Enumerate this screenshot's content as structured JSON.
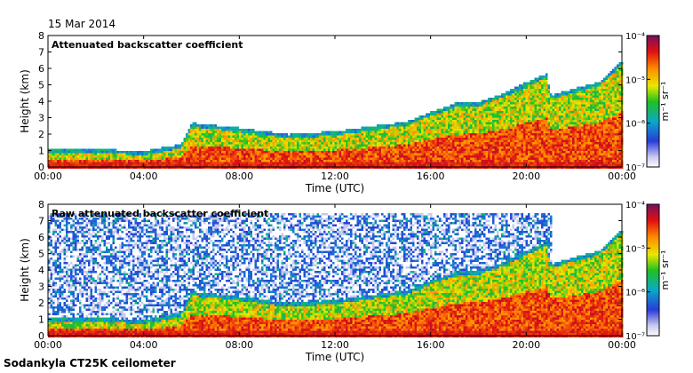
{
  "date": "15 Mar 2014",
  "instrument": "Sodankyla CT25K ceilometer",
  "chart_data": [
    {
      "type": "heatmap",
      "title": "Attenuated backscatter coefficient",
      "xlabel": "Time (UTC)",
      "ylabel": "Height (km)",
      "xticks": [
        "00:00",
        "04:00",
        "08:00",
        "12:00",
        "16:00",
        "20:00",
        "00:00"
      ],
      "xlim_hours": [
        0,
        24
      ],
      "ylim": [
        0,
        8
      ],
      "yticks": [
        0,
        1,
        2,
        3,
        4,
        5,
        6,
        7,
        8
      ],
      "colorbar": {
        "label": "m⁻¹ sr⁻¹",
        "ticks": [
          "10⁻⁷",
          "10⁻⁶",
          "10⁻⁵",
          "10⁻⁴"
        ],
        "range_exp": [
          -7,
          -4
        ]
      },
      "boundary_layer_top_km": [
        [
          0,
          0.9
        ],
        [
          2,
          0.9
        ],
        [
          4,
          0.8
        ],
        [
          5.5,
          1.2
        ],
        [
          6,
          2.5
        ],
        [
          8,
          2.2
        ],
        [
          10,
          1.8
        ],
        [
          12,
          2.0
        ],
        [
          14,
          2.4
        ],
        [
          15,
          2.6
        ],
        [
          16,
          3.2
        ],
        [
          17,
          3.7
        ],
        [
          18,
          3.8
        ],
        [
          19,
          4.3
        ],
        [
          20,
          5.0
        ],
        [
          20.8,
          5.5
        ],
        [
          21,
          4.2
        ],
        [
          23,
          5.0
        ],
        [
          24,
          6.3
        ]
      ]
    },
    {
      "type": "heatmap",
      "title": "Raw attenuated backscatter coefficient",
      "xlabel": "Time (UTC)",
      "ylabel": "Height (km)",
      "xticks": [
        "00:00",
        "04:00",
        "08:00",
        "12:00",
        "16:00",
        "20:00",
        "00:00"
      ],
      "xlim_hours": [
        0,
        24
      ],
      "ylim": [
        0,
        8
      ],
      "yticks": [
        0,
        1,
        2,
        3,
        4,
        5,
        6,
        7,
        8
      ],
      "colorbar": {
        "label": "m⁻¹ sr⁻¹",
        "ticks": [
          "10⁻⁷",
          "10⁻⁶",
          "10⁻⁵",
          "10⁻⁴"
        ],
        "range_exp": [
          -7,
          -4
        ]
      },
      "noise_ceiling_km": 7.5,
      "noise_end_hour": 21
    }
  ]
}
